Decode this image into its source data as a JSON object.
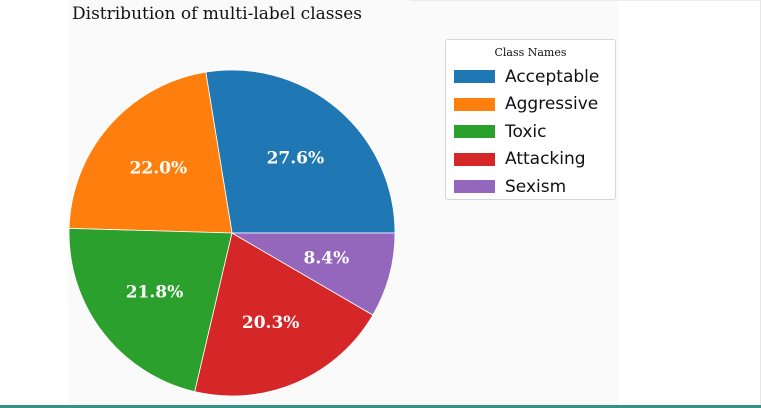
{
  "chart_data": {
    "type": "pie",
    "title": "Distribution of multi-label classes",
    "legend_title": "Class Names",
    "legend_position": "right",
    "start_angle_deg": 0,
    "direction": "counterclockwise",
    "slices": [
      {
        "label": "Acceptable",
        "value": 27.6,
        "pct_label": "27.6%",
        "color": "#1f77b4"
      },
      {
        "label": "Aggressive",
        "value": 22.0,
        "pct_label": "22.0%",
        "color": "#ff7f0e"
      },
      {
        "label": "Toxic",
        "value": 21.8,
        "pct_label": "21.8%",
        "color": "#2ca02c"
      },
      {
        "label": "Attacking",
        "value": 20.3,
        "pct_label": "20.3%",
        "color": "#d62728"
      },
      {
        "label": "Sexism",
        "value": 8.4,
        "pct_label": "8.4%",
        "color": "#9467bd"
      }
    ]
  }
}
